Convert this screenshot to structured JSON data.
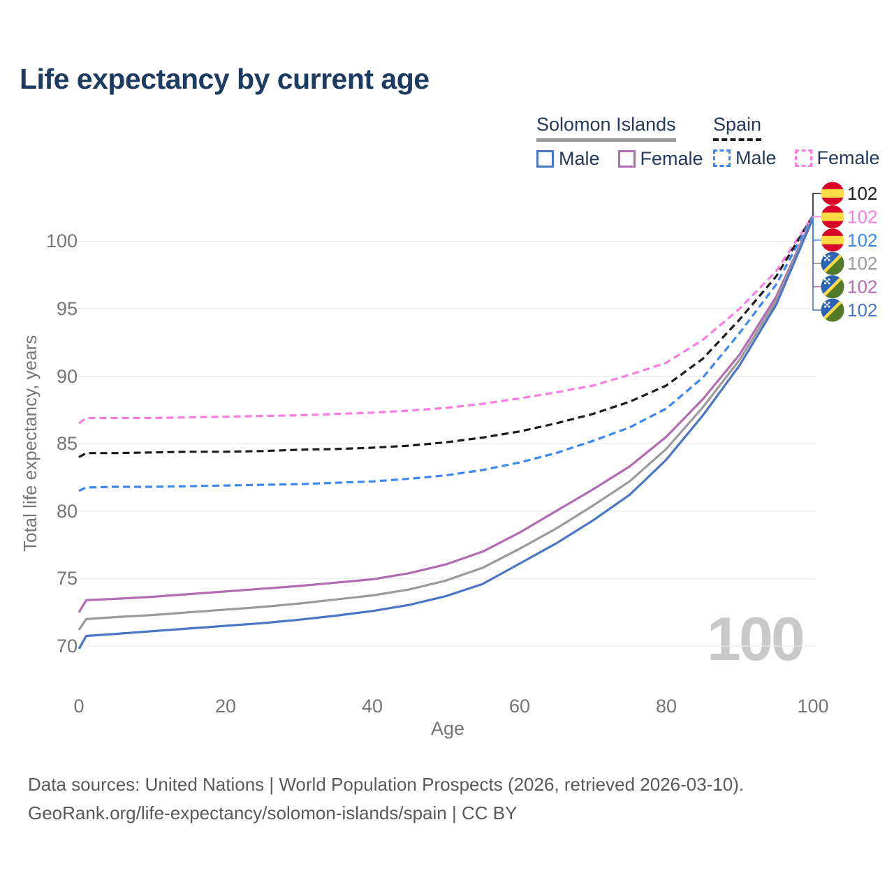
{
  "title": "Life expectancy by current age",
  "colors": {
    "title_navy": "#1d3a60",
    "legend_text": "#24395b",
    "tick_text": "#757575",
    "footer_text": "#595959",
    "grid": "#ececec",
    "watermark": "#c9c9c9"
  },
  "legend": {
    "groups": [
      {
        "name": "Solomon Islands",
        "line_style": "solid",
        "underline_color": "#9b9b9b",
        "items": [
          {
            "label": "Male",
            "color": "#4b76c5"
          },
          {
            "label": "Female",
            "color": "#b16cb2"
          }
        ]
      },
      {
        "name": "Spain",
        "line_style": "dashed",
        "underline_color": "#1c1c1c",
        "items": [
          {
            "label": "Male",
            "color": "#3d87f5"
          },
          {
            "label": "Female",
            "color": "#fd7ce1"
          }
        ]
      }
    ]
  },
  "watermark": "100",
  "footer": {
    "line1": "Data sources: United Nations | World Population Prospects (2026, retrieved 2026-03-10).",
    "line2": "GeoRank.org/life-expectancy/solomon-islands/spain | CC BY"
  },
  "chart_data": {
    "type": "line",
    "title": "Life expectancy by current age",
    "xlabel": "Age",
    "ylabel": "Total life expectancy, years",
    "xlim": [
      0,
      100
    ],
    "ylim": [
      69,
      102.5
    ],
    "x_ticks": [
      0,
      20,
      40,
      60,
      80,
      100
    ],
    "y_ticks": [
      70,
      75,
      80,
      85,
      90,
      95,
      100
    ],
    "grid": "horizontal-only",
    "legend_position": "top-right",
    "ages": [
      0,
      1,
      5,
      10,
      15,
      20,
      25,
      30,
      35,
      40,
      45,
      50,
      55,
      60,
      65,
      70,
      75,
      80,
      85,
      90,
      95,
      100
    ],
    "series": [
      {
        "name": "Spain Female",
        "color": "#fd7ce1",
        "dash": true,
        "flag": "es",
        "end_label": "102",
        "values": [
          86.5,
          86.9,
          86.9,
          86.9,
          86.95,
          87.0,
          87.05,
          87.1,
          87.2,
          87.3,
          87.45,
          87.65,
          87.95,
          88.35,
          88.8,
          89.3,
          90.1,
          91.0,
          92.7,
          95.0,
          97.8,
          101.9
        ]
      },
      {
        "name": "Spain Both sexes",
        "color": "#1c1c1c",
        "dash": true,
        "flag": "es",
        "end_label": "102",
        "values": [
          84.0,
          84.3,
          84.3,
          84.35,
          84.4,
          84.4,
          84.45,
          84.55,
          84.6,
          84.7,
          84.85,
          85.1,
          85.45,
          85.9,
          86.5,
          87.2,
          88.1,
          89.3,
          91.3,
          94.2,
          97.4,
          101.9
        ]
      },
      {
        "name": "Spain Male",
        "color": "#3d87f5",
        "dash": true,
        "flag": "es",
        "end_label": "102",
        "values": [
          81.5,
          81.75,
          81.8,
          81.8,
          81.85,
          81.9,
          81.95,
          82.0,
          82.1,
          82.2,
          82.4,
          82.65,
          83.05,
          83.6,
          84.3,
          85.2,
          86.2,
          87.6,
          89.9,
          93.2,
          96.8,
          101.9
        ]
      },
      {
        "name": "Solomon Islands Female",
        "color": "#b16cb2",
        "dash": false,
        "flag": "sb",
        "end_label": "102",
        "values": [
          72.5,
          73.4,
          73.5,
          73.65,
          73.85,
          74.05,
          74.25,
          74.45,
          74.7,
          74.95,
          75.4,
          76.05,
          77.0,
          78.4,
          80.0,
          81.6,
          83.3,
          85.5,
          88.3,
          91.6,
          95.9,
          101.8
        ]
      },
      {
        "name": "Solomon Islands Both sexes",
        "color": "#9b9b9b",
        "dash": false,
        "flag": "sb",
        "end_label": "102",
        "values": [
          71.2,
          72.0,
          72.15,
          72.3,
          72.5,
          72.7,
          72.9,
          73.15,
          73.45,
          73.75,
          74.2,
          74.85,
          75.8,
          77.2,
          78.7,
          80.4,
          82.2,
          84.6,
          87.7,
          91.2,
          95.6,
          101.8
        ]
      },
      {
        "name": "Solomon Islands Male",
        "color": "#4b76c5",
        "dash": false,
        "flag": "sb",
        "end_label": "102",
        "values": [
          69.8,
          70.75,
          70.9,
          71.1,
          71.3,
          71.5,
          71.7,
          71.95,
          72.25,
          72.6,
          73.05,
          73.7,
          74.6,
          76.1,
          77.6,
          79.3,
          81.2,
          83.8,
          87.1,
          90.8,
          95.3,
          101.7
        ]
      }
    ],
    "callout_rows": [
      1,
      0,
      2,
      4,
      3,
      5
    ],
    "connector_order": [
      4,
      3,
      5,
      2,
      0,
      1
    ]
  }
}
